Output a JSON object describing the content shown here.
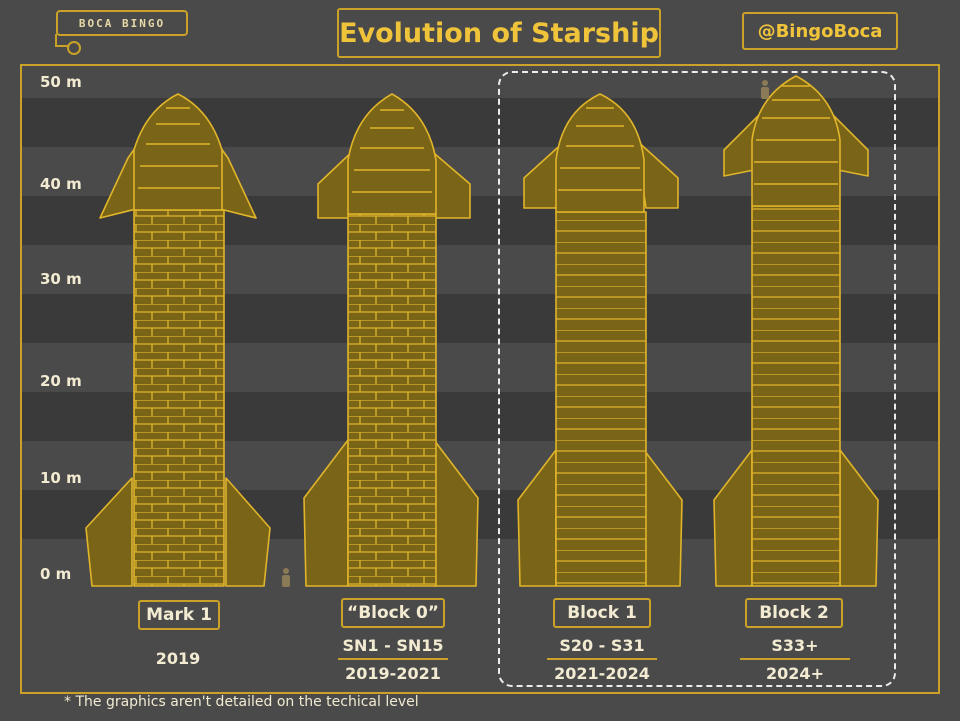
{
  "header": {
    "logo_text": "BOCA BINGO",
    "title": "Evolution of Starship",
    "handle": "@BingoBoca"
  },
  "axis": {
    "unit": "m",
    "ticks": [
      "50 m",
      "40 m",
      "30 m",
      "20 m",
      "10 m",
      "0 m"
    ]
  },
  "ships": [
    {
      "name": "Mark 1",
      "serials": "",
      "years": "2019"
    },
    {
      "name": "“Block 0”",
      "serials": "SN1 - SN15",
      "years": "2019-2021"
    },
    {
      "name": "Block 1",
      "serials": "S20 - S31",
      "years": "2021-2024"
    },
    {
      "name": "Block 2",
      "serials": "S33+",
      "years": "2024+"
    }
  ],
  "footnote": "* The graphics aren't detailed on the techical level",
  "colors": {
    "background": "#4a4a4a",
    "band": "#3a3a3a",
    "ship_fill": "#7a6418",
    "ship_stroke": "#e0b52a",
    "title_text": "#f0c43a"
  }
}
